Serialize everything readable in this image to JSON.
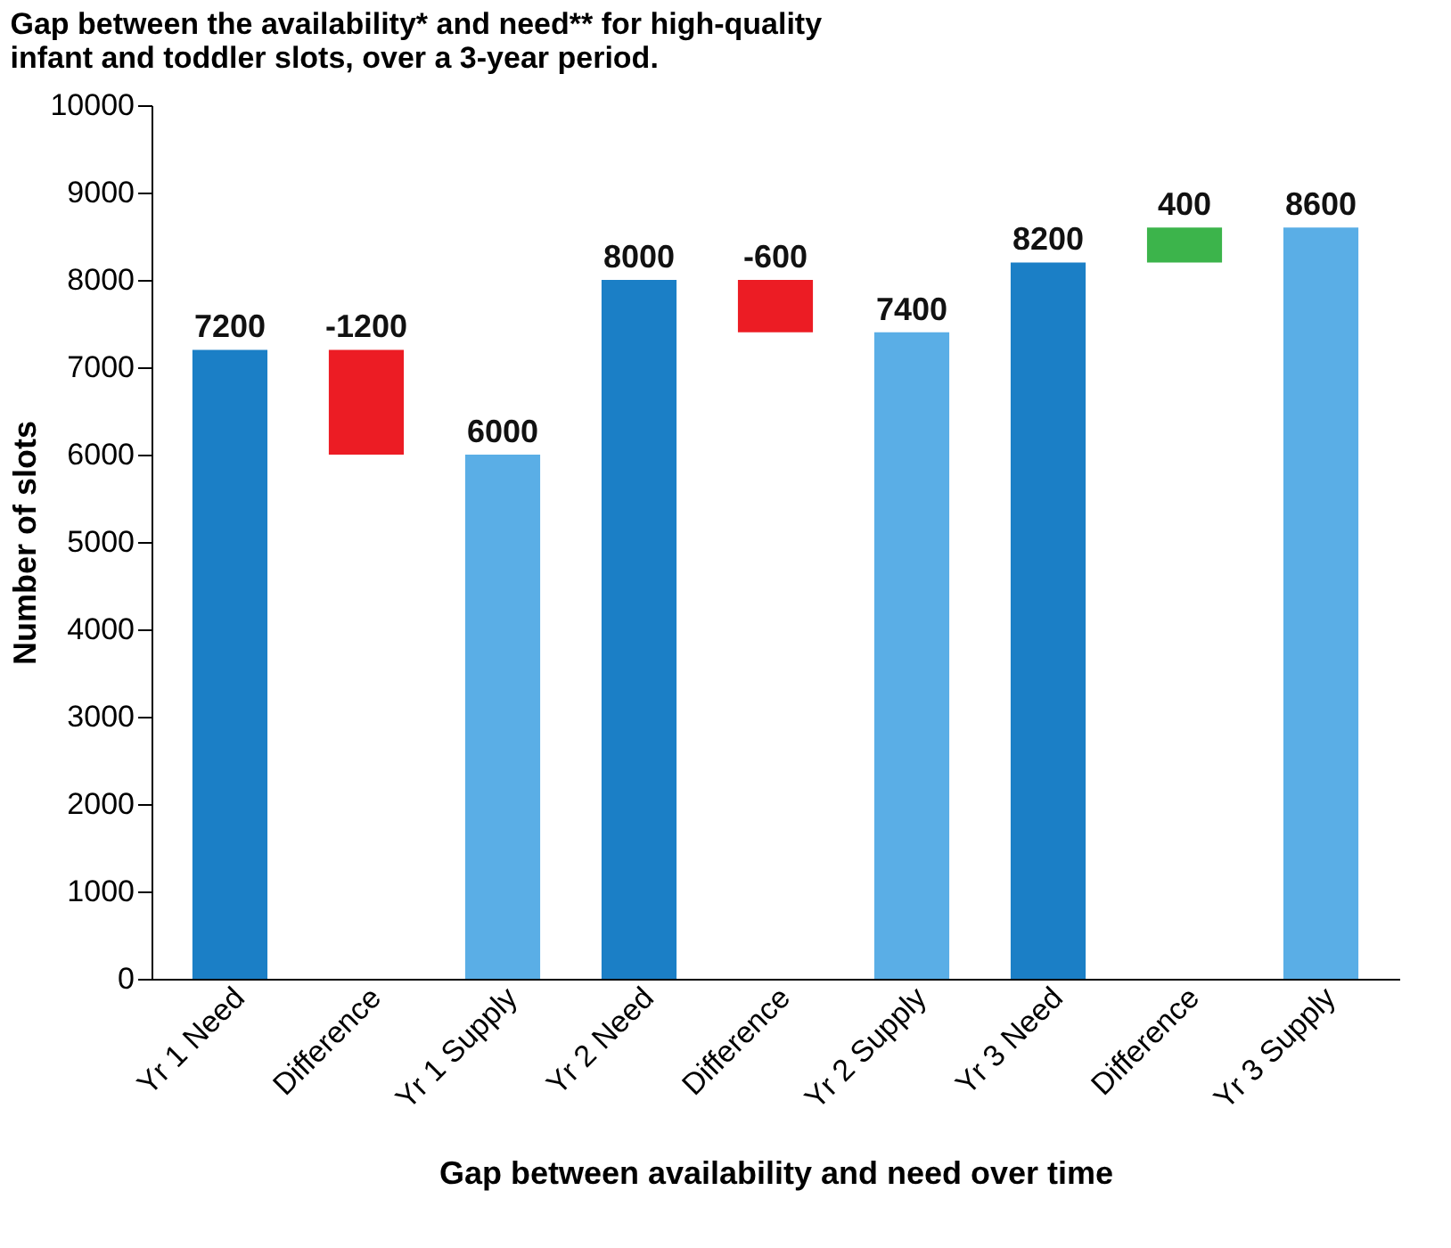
{
  "chart_data": {
    "type": "bar",
    "title": "Gap between the availability* and need** for high-quality infant and toddler slots, over a 3-year period.",
    "xlabel": "Gap between availability and need over time",
    "ylabel": "Number of slots",
    "categories": [
      "Yr 1 Need",
      "Difference",
      "Yr 1 Supply",
      "Yr 2 Need",
      "Difference",
      "Yr 2 Supply",
      "Yr 3 Need",
      "Difference",
      "Yr 3 Supply"
    ],
    "values": [
      7200,
      -1200,
      6000,
      8000,
      -600,
      7400,
      8200,
      400,
      8600
    ],
    "base": [
      0,
      7200,
      0,
      0,
      8000,
      0,
      0,
      8200,
      0
    ],
    "colors": [
      "#1b7fc6",
      "#ec1c24",
      "#5aaee6",
      "#1b7fc6",
      "#ec1c24",
      "#5aaee6",
      "#1b7fc6",
      "#3cb44b",
      "#5aaee6"
    ],
    "ylim": [
      0,
      10000
    ],
    "yticks": [
      0,
      1000,
      2000,
      3000,
      4000,
      5000,
      6000,
      7000,
      8000,
      9000,
      10000
    ],
    "grid": false,
    "legend": false,
    "data_labels": true
  }
}
